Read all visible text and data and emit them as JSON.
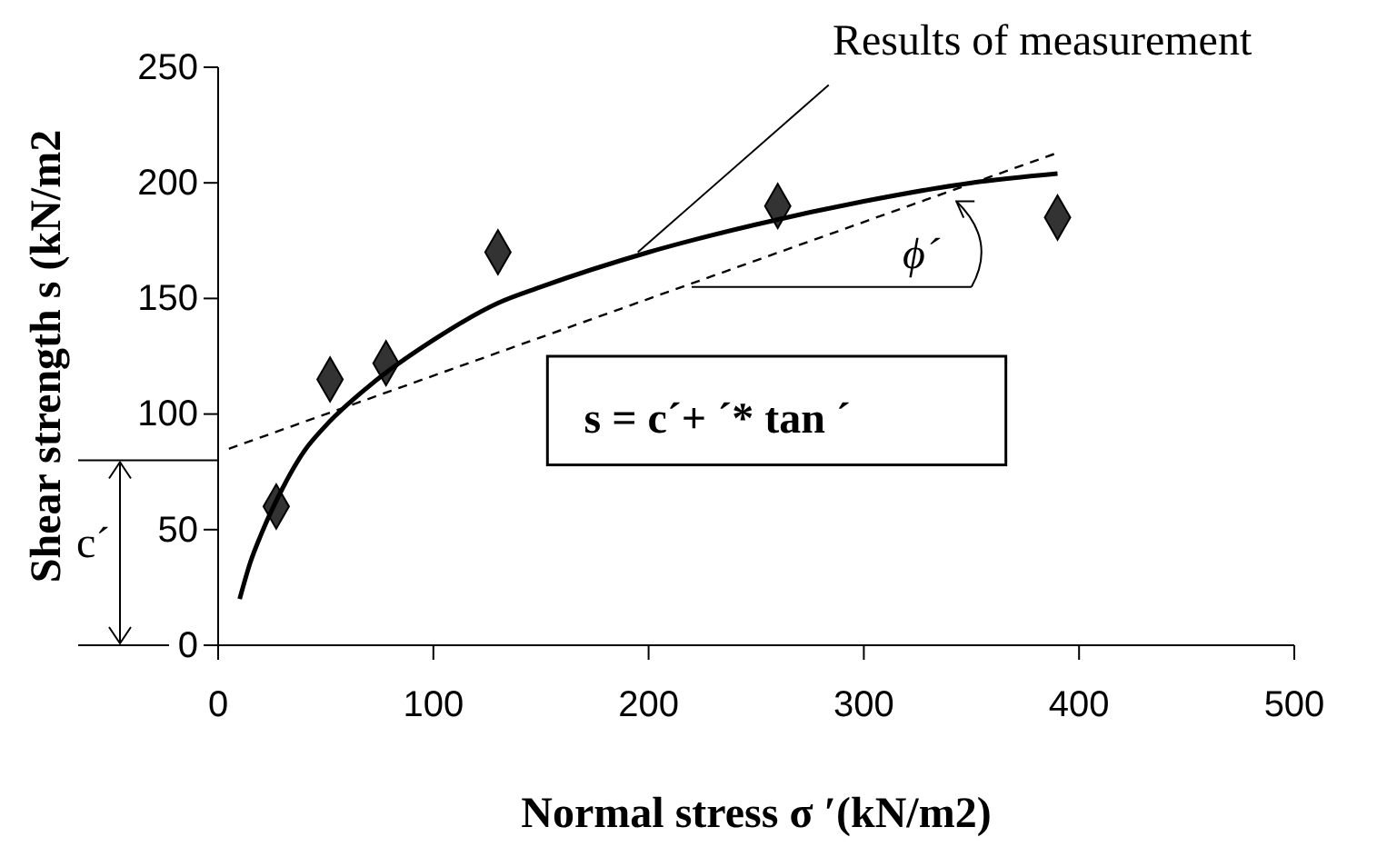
{
  "chart_data": {
    "type": "scatter",
    "xlabel": "Normal stress σ ′(kN/m2)",
    "ylabel": "Shear strength s (kN/m2",
    "xlim": [
      0,
      500
    ],
    "xticks": [
      0,
      100,
      200,
      300,
      400,
      500
    ],
    "ylim": [
      0,
      250
    ],
    "yticks": [
      0,
      50,
      100,
      150,
      200,
      250
    ],
    "grid": false,
    "series": [
      {
        "marker": "diamond",
        "color": "#333333",
        "x": [
          27,
          52,
          78,
          130,
          260,
          390
        ],
        "values": [
          60,
          115,
          122,
          170,
          190,
          185
        ]
      },
      {
        "type": "line",
        "marker": "none",
        "line_style": "solid",
        "color": "#000000",
        "x": [
          10,
          15,
          20,
          30,
          40,
          50,
          70,
          100,
          130,
          150,
          200,
          250,
          300,
          350,
          390
        ],
        "values": [
          20,
          36,
          48,
          68,
          84,
          95,
          112,
          132,
          148,
          155,
          170,
          182,
          192,
          200,
          204
        ]
      },
      {
        "type": "line",
        "marker": "none",
        "line_style": "dashed",
        "color": "#000000",
        "x": [
          5,
          390
        ],
        "values": [
          85,
          213
        ]
      }
    ],
    "annotations": [
      {
        "text": "Results of measurement",
        "x": 195,
        "y": 170
      },
      "s = c´+ ´* tan ´",
      "c´",
      {
        "text": "ϕ´",
        "x": 345,
        "y": 198
      }
    ]
  }
}
